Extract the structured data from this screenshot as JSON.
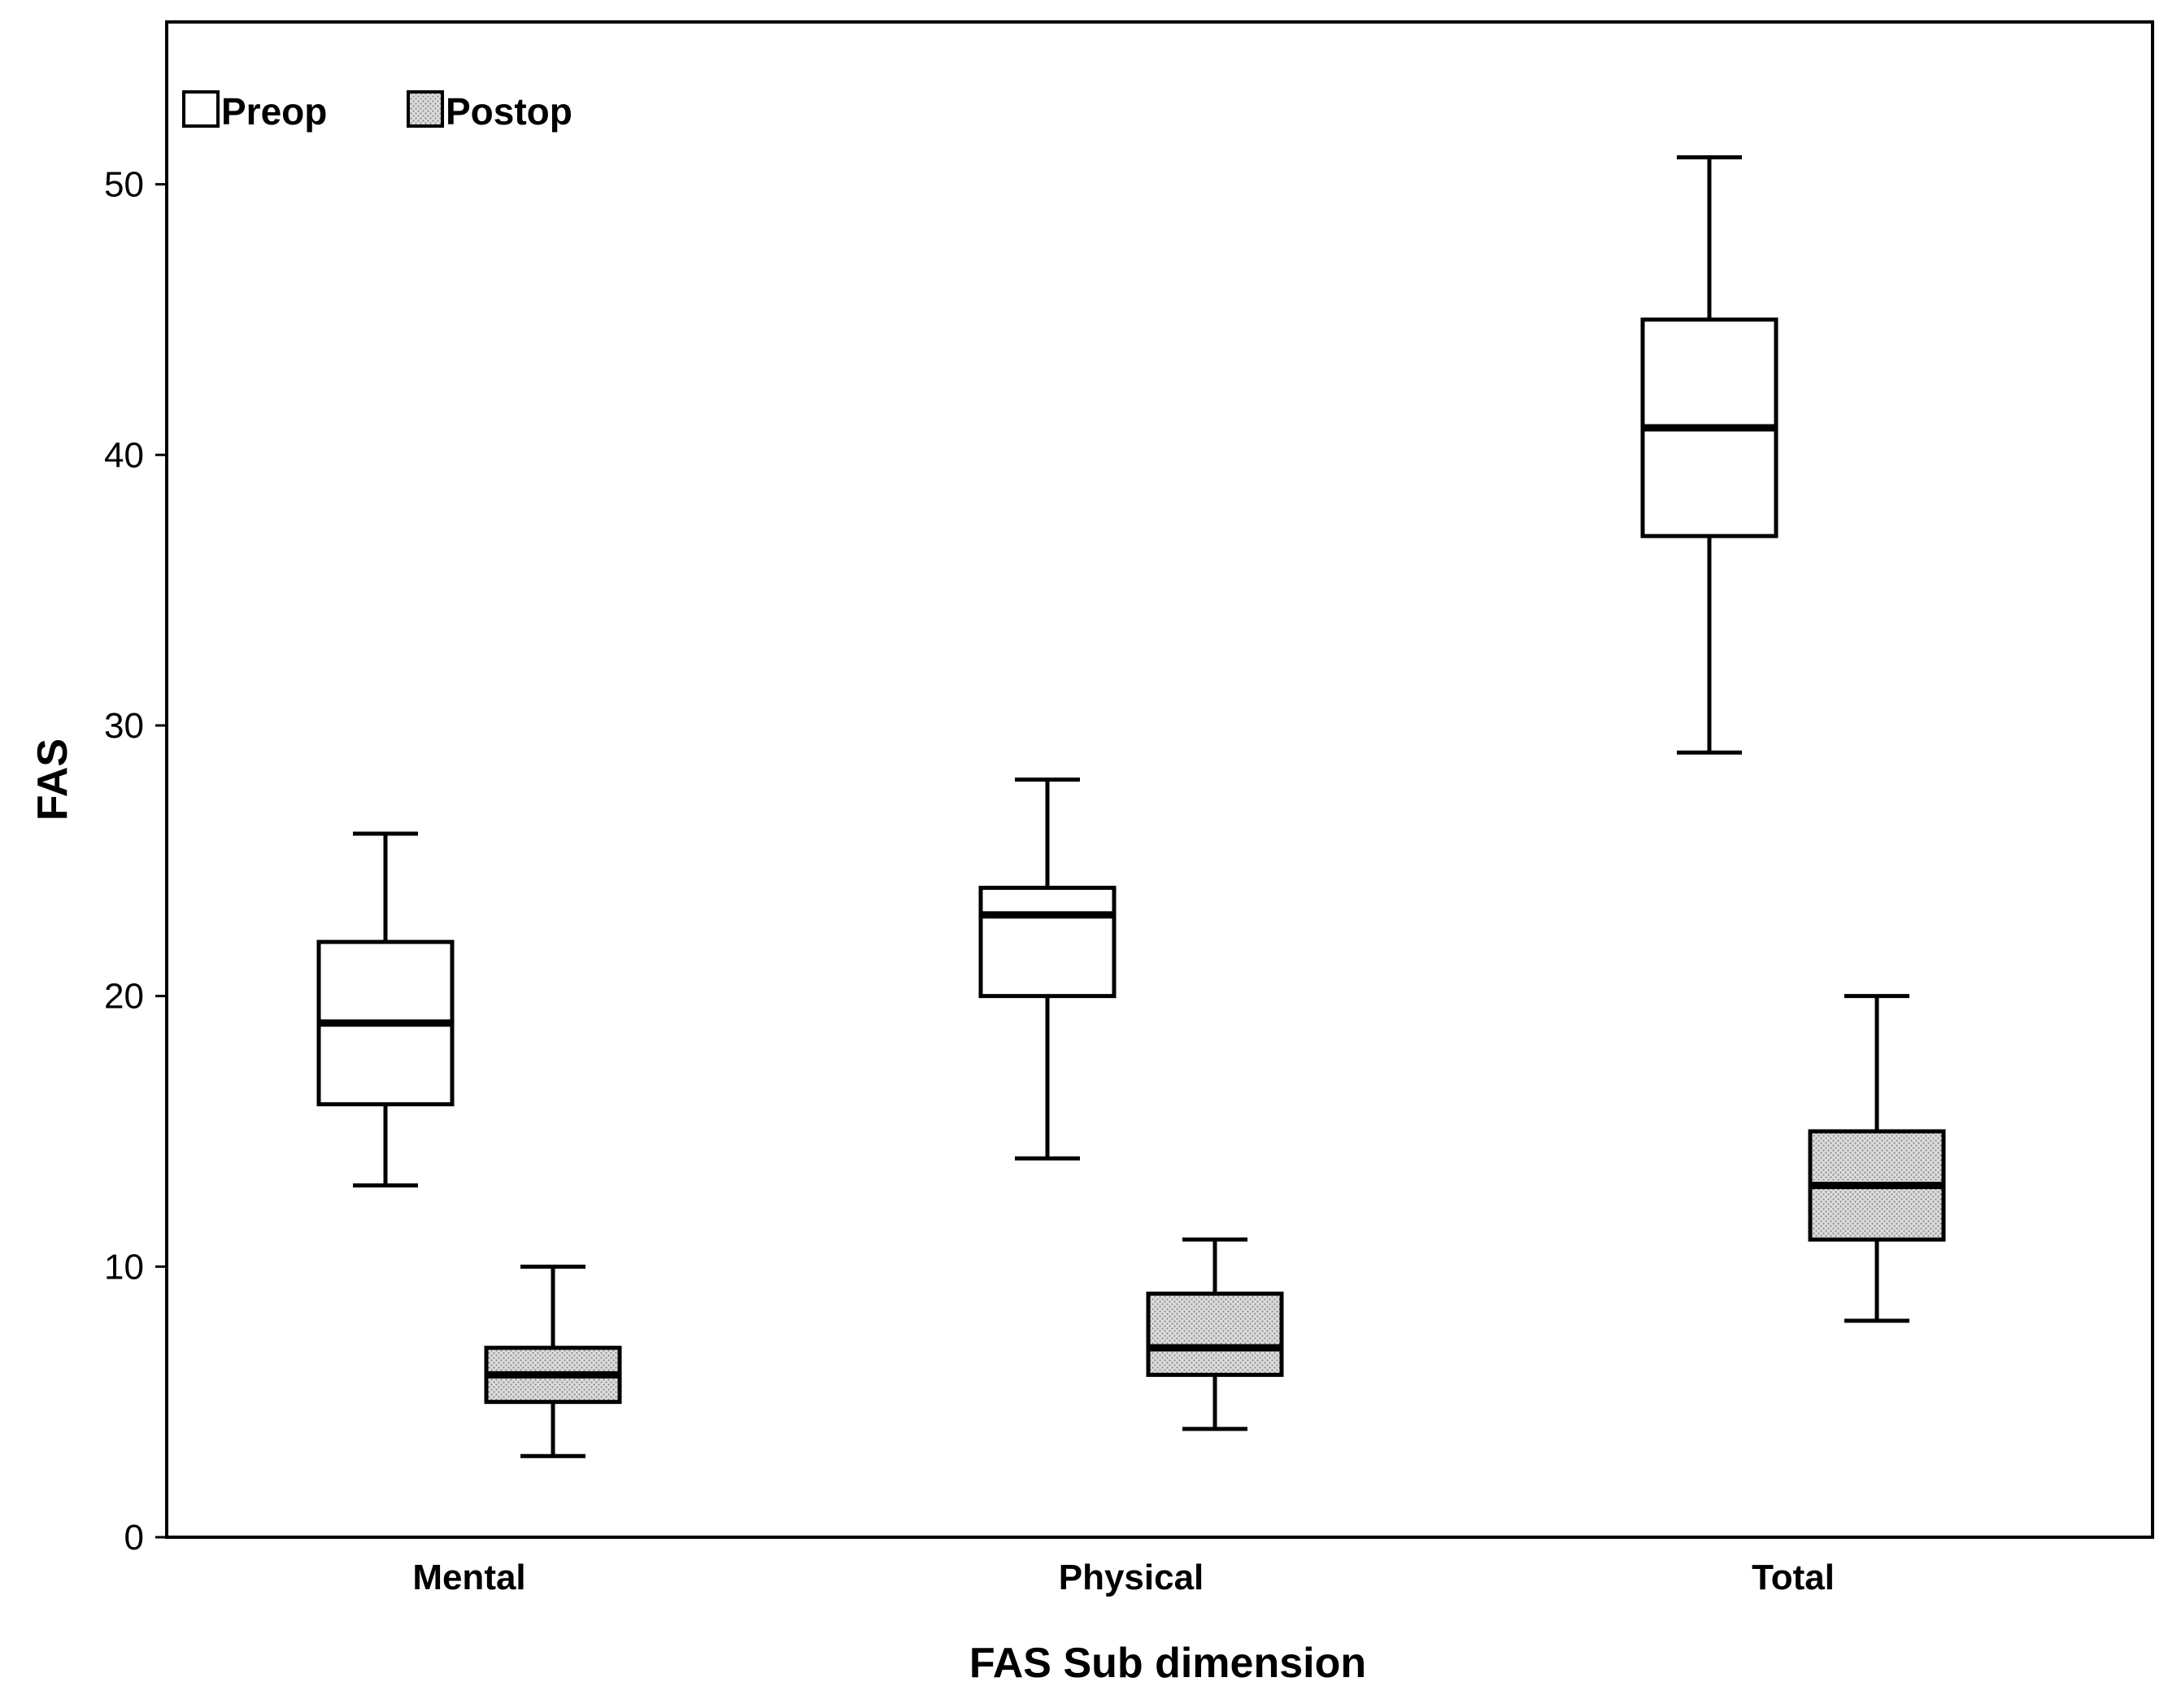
{
  "chart_data": {
    "type": "boxplot",
    "title": "",
    "xlabel": "FAS Sub dimension",
    "ylabel": "FAS",
    "ylim": [
      0,
      56
    ],
    "yticks": [
      0,
      10,
      20,
      30,
      40,
      50
    ],
    "categories": [
      "Mental",
      "Physical",
      "Total"
    ],
    "legend_position": "top-left",
    "series": [
      {
        "name": "Preop",
        "fill": "#ffffff",
        "pattern": "none",
        "boxes": [
          {
            "min": 13,
            "q1": 16,
            "median": 19,
            "q3": 22,
            "max": 26
          },
          {
            "min": 14,
            "q1": 20,
            "median": 23,
            "q3": 24,
            "max": 28
          },
          {
            "min": 29,
            "q1": 37,
            "median": 41,
            "q3": 45,
            "max": 51
          }
        ]
      },
      {
        "name": "Postop",
        "fill": "#d9d9d9",
        "pattern": "dots",
        "boxes": [
          {
            "min": 3,
            "q1": 5,
            "median": 6,
            "q3": 7,
            "max": 10
          },
          {
            "min": 4,
            "q1": 6,
            "median": 7,
            "q3": 9,
            "max": 11
          },
          {
            "min": 8,
            "q1": 11,
            "median": 13,
            "q3": 15,
            "max": 20
          }
        ]
      }
    ]
  }
}
